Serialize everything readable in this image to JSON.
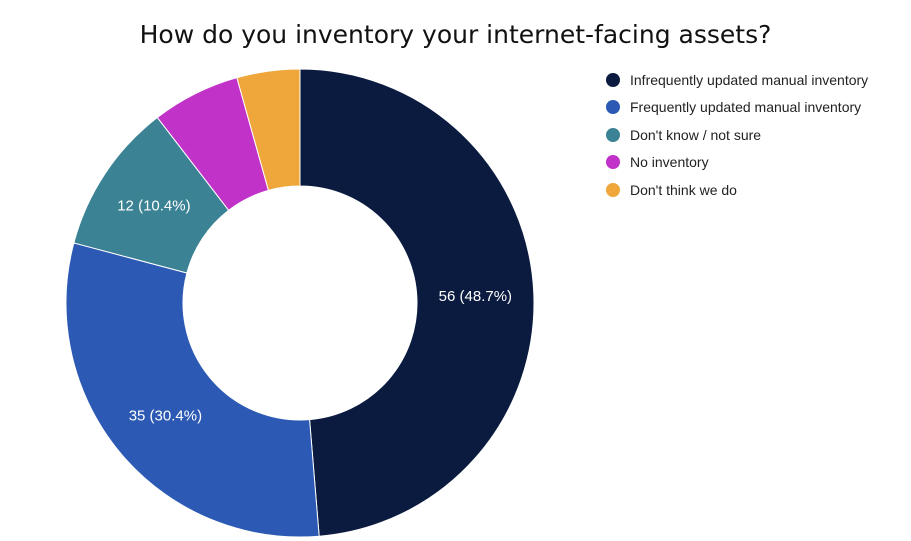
{
  "chart_data": {
    "type": "pie",
    "style": "donut",
    "title": "How do you inventory your internet-facing assets?",
    "legend_position": "right",
    "slices": [
      {
        "name": "Infrequently updated manual inventory",
        "value": 56,
        "percent": 48.7,
        "label": "56 (48.7%)",
        "color": "#0b1b3f"
      },
      {
        "name": "Frequently updated manual inventory",
        "value": 35,
        "percent": 30.4,
        "label": "35 (30.4%)",
        "color": "#2b59b3"
      },
      {
        "name": "Don't know / not sure",
        "value": 12,
        "percent": 10.4,
        "label": "12 (10.4%)",
        "color": "#3b8294"
      },
      {
        "name": "No inventory",
        "value": 7,
        "percent": 6.1,
        "label": "",
        "color": "#c032c8"
      },
      {
        "name": "Don't think we do",
        "value": 5,
        "percent": 4.3,
        "label": "",
        "color": "#efa73c"
      }
    ]
  }
}
